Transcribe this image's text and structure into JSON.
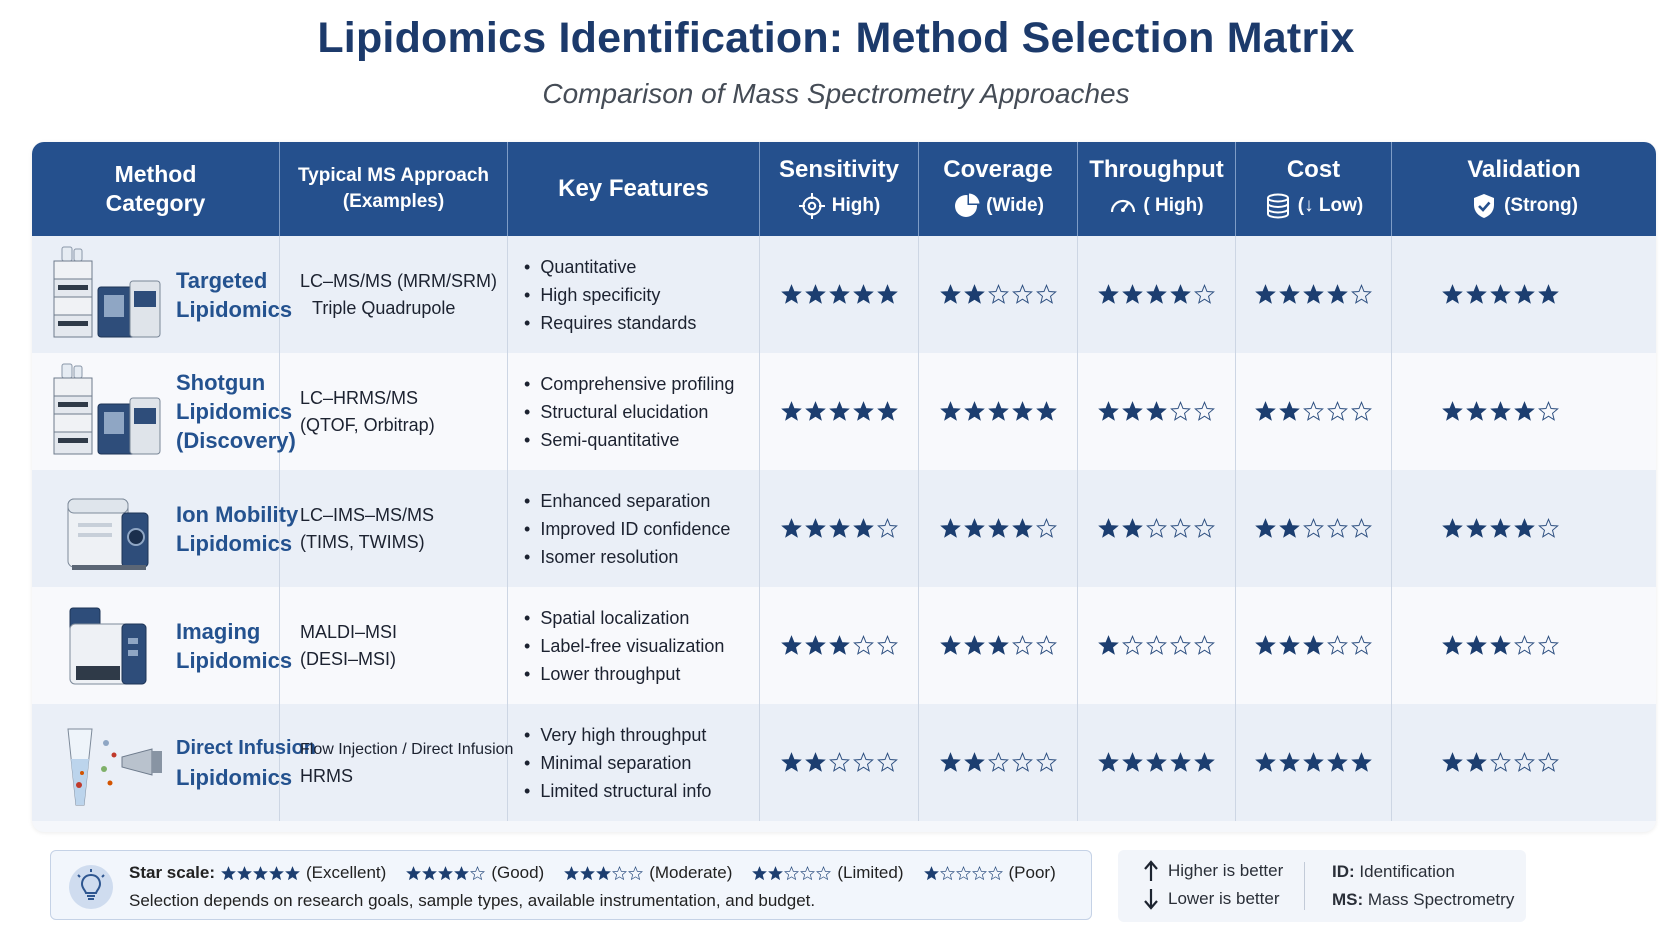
{
  "title": "Lipidomics Identification: Method Selection Matrix",
  "subtitle": "Comparison of Mass Spectrometry Approaches",
  "header": {
    "method": [
      "Method",
      "Category"
    ],
    "approach": [
      "Typical MS Approach",
      "(Examples)"
    ],
    "features": "Key Features",
    "metrics": [
      {
        "label": "Sensitivity",
        "sub": "High)",
        "icon": "crosshair-icon"
      },
      {
        "label": "Coverage",
        "sub": "(Wide)",
        "icon": "pie-chart-icon"
      },
      {
        "label": "Throughput",
        "sub": "( High)",
        "icon": "speedometer-icon"
      },
      {
        "label": "Cost",
        "sub": "(↓ Low)",
        "icon": "coin-stack-icon"
      },
      {
        "label": "Validation",
        "sub": "(Strong)",
        "icon": "shield-check-icon"
      }
    ]
  },
  "rows": [
    {
      "name": [
        "Targeted",
        "Lipidomics"
      ],
      "instrument": "lc-ms-instrument-icon",
      "approach": [
        "LC–MS/MS (MRM/SRM)",
        "Triple Quadrupole"
      ],
      "features": [
        "Quantitative",
        "High specificity",
        "Requires standards"
      ],
      "ratings": [
        5,
        2,
        4,
        4,
        5
      ]
    },
    {
      "name": [
        "Shotgun",
        "Lipidomics",
        "(Discovery)"
      ],
      "instrument": "lc-ms-instrument-icon",
      "approach": [
        "LC–HRMS/MS",
        "(QTOF, Orbitrap)"
      ],
      "features": [
        "Comprehensive profiling",
        "Structural elucidation",
        "Semi-quantitative"
      ],
      "ratings": [
        5,
        5,
        3,
        2,
        4
      ]
    },
    {
      "name": [
        "Ion Mobility",
        "Lipidomics"
      ],
      "instrument": "ion-mobility-instrument-icon",
      "approach": [
        "LC–IMS–MS/MS",
        "(TIMS, TWIMS)"
      ],
      "features": [
        "Enhanced separation",
        "Improved ID confidence",
        "Isomer resolution"
      ],
      "ratings": [
        4,
        4,
        2,
        2,
        4
      ]
    },
    {
      "name": [
        "Imaging",
        "Lipidomics"
      ],
      "instrument": "imaging-ms-instrument-icon",
      "approach": [
        "MALDI–MSI",
        "(DESI–MSI)"
      ],
      "features": [
        "Spatial localization",
        "Label-free visualization",
        "Lower throughput"
      ],
      "ratings": [
        3,
        3,
        1,
        3,
        3
      ]
    },
    {
      "name": [
        "Direct Infusion",
        "Lipidomics"
      ],
      "instrument": "direct-infusion-icon",
      "approach": [
        "Flow Injection / Direct Infusion",
        "HRMS"
      ],
      "features": [
        "Very high throughput",
        "Minimal separation",
        "Limited structural info"
      ],
      "ratings": [
        2,
        2,
        5,
        5,
        2
      ]
    }
  ],
  "legend": {
    "label": "Star scale:",
    "scale": [
      {
        "stars": 5,
        "text": "(Excellent)"
      },
      {
        "stars": 4,
        "text": "(Good)"
      },
      {
        "stars": 3,
        "text": "(Moderate)"
      },
      {
        "stars": 2,
        "text": "(Limited)"
      },
      {
        "stars": 1,
        "text": "(Poor)"
      }
    ],
    "note": "Selection depends on research goals, sample types, available instrumentation, and budget."
  },
  "key": {
    "higher": "Higher is better",
    "lower": "Lower is better",
    "abbr": [
      {
        "term": "ID:",
        "def": " Identification"
      },
      {
        "term": "MS:",
        "def": " Mass Spectrometry"
      }
    ]
  }
}
